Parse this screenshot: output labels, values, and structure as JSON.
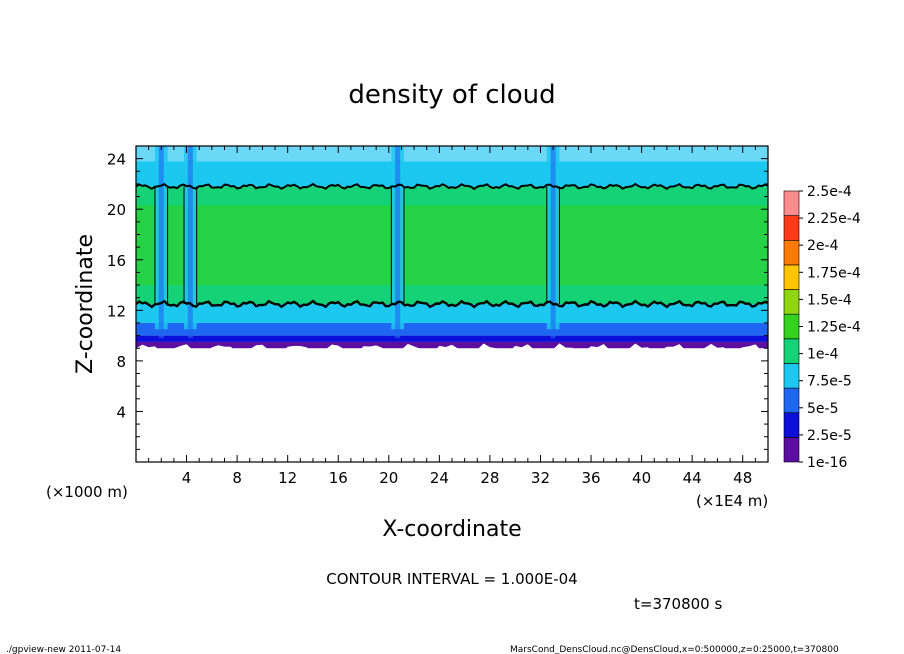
{
  "chart_data": {
    "type": "heatmap",
    "title": "density of cloud",
    "xlabel": "X-coordinate",
    "ylabel": "Z-coordinate",
    "x_unit_left": "(×1000 m)",
    "x_unit_right": "(×1E4 m)",
    "xlim": [
      0,
      50
    ],
    "ylim": [
      0,
      25
    ],
    "xticks": [
      "4",
      "8",
      "12",
      "16",
      "20",
      "24",
      "28",
      "32",
      "36",
      "40",
      "44",
      "48"
    ],
    "yticks": [
      "4",
      "8",
      "12",
      "16",
      "20",
      "24"
    ],
    "contour_levels": [
      0.0001
    ],
    "cloud_base_z": 9,
    "cloud_top_z": 25,
    "contour_band_z": [
      12.5,
      21.8
    ],
    "vertical_channels_x": [
      2.0,
      4.3,
      20.7,
      33.0
    ],
    "colorbar": {
      "levels": [
        "1e-16",
        "2.5e-5",
        "5e-5",
        "7.5e-5",
        "1e-4",
        "1.25e-4",
        "1.5e-4",
        "1.75e-4",
        "2e-4",
        "2.25e-4",
        "2.5e-4"
      ],
      "colors": [
        "#5b0ea0",
        "#0b0fd8",
        "#1f66f2",
        "#1dc8f0",
        "#16d276",
        "#34d11e",
        "#8ed610",
        "#ffc500",
        "#ff7a00",
        "#ff3b1a",
        "#ff8c8c"
      ]
    }
  },
  "annotations": {
    "contour_interval": "CONTOUR INTERVAL = 1.000E-04",
    "time": "t=370800 s",
    "footer_left": "./gpview-new   2011-07-14",
    "footer_right": "MarsCond_DensCloud.nc@DensCloud,x=0:500000,z=0:25000,t=370800"
  },
  "colors": {
    "frame": "#000000",
    "background": "#ffffff"
  }
}
